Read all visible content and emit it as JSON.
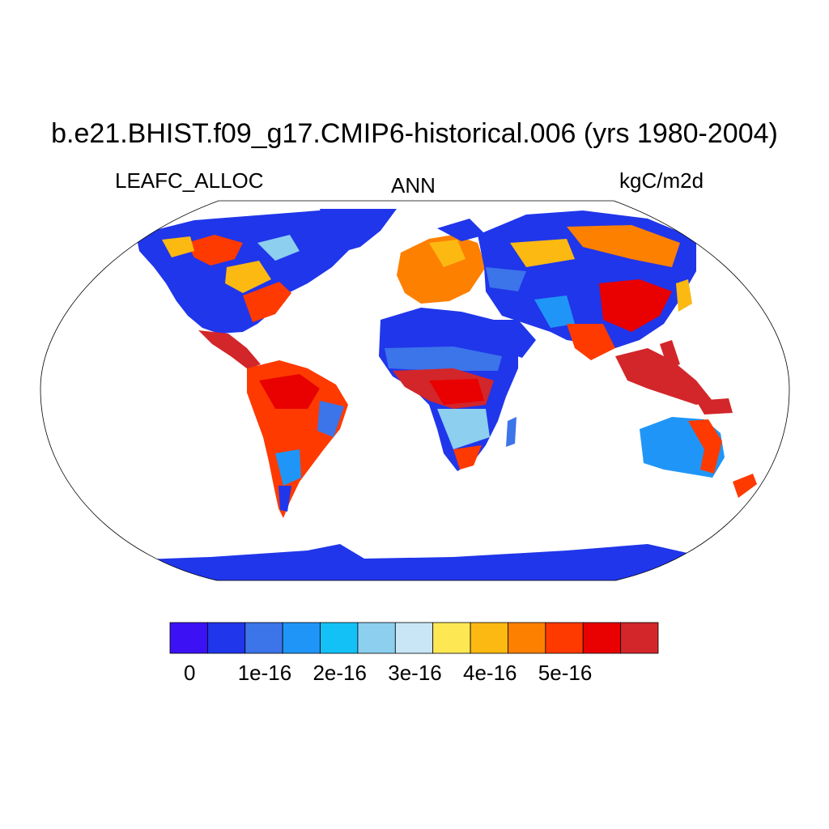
{
  "title": "b.e21.BHIST.f09_g17.CMIP6-historical.006 (yrs 1980-2004)",
  "left_subtitle": "LEAFC_ALLOC",
  "center_subtitle": "ANN",
  "right_subtitle": "kgC/m2d",
  "colorbar": {
    "colors": [
      "#3c12f5",
      "#2036ea",
      "#3c74ea",
      "#1f96f7",
      "#14c1f7",
      "#8ccfee",
      "#c8e6f6",
      "#fde854",
      "#fcb912",
      "#fe8000",
      "#fe3a00",
      "#e90000",
      "#d2262a"
    ],
    "labels": [
      "0",
      "1e-16",
      "2e-16",
      "3e-16",
      "4e-16",
      "5e-16"
    ]
  }
}
